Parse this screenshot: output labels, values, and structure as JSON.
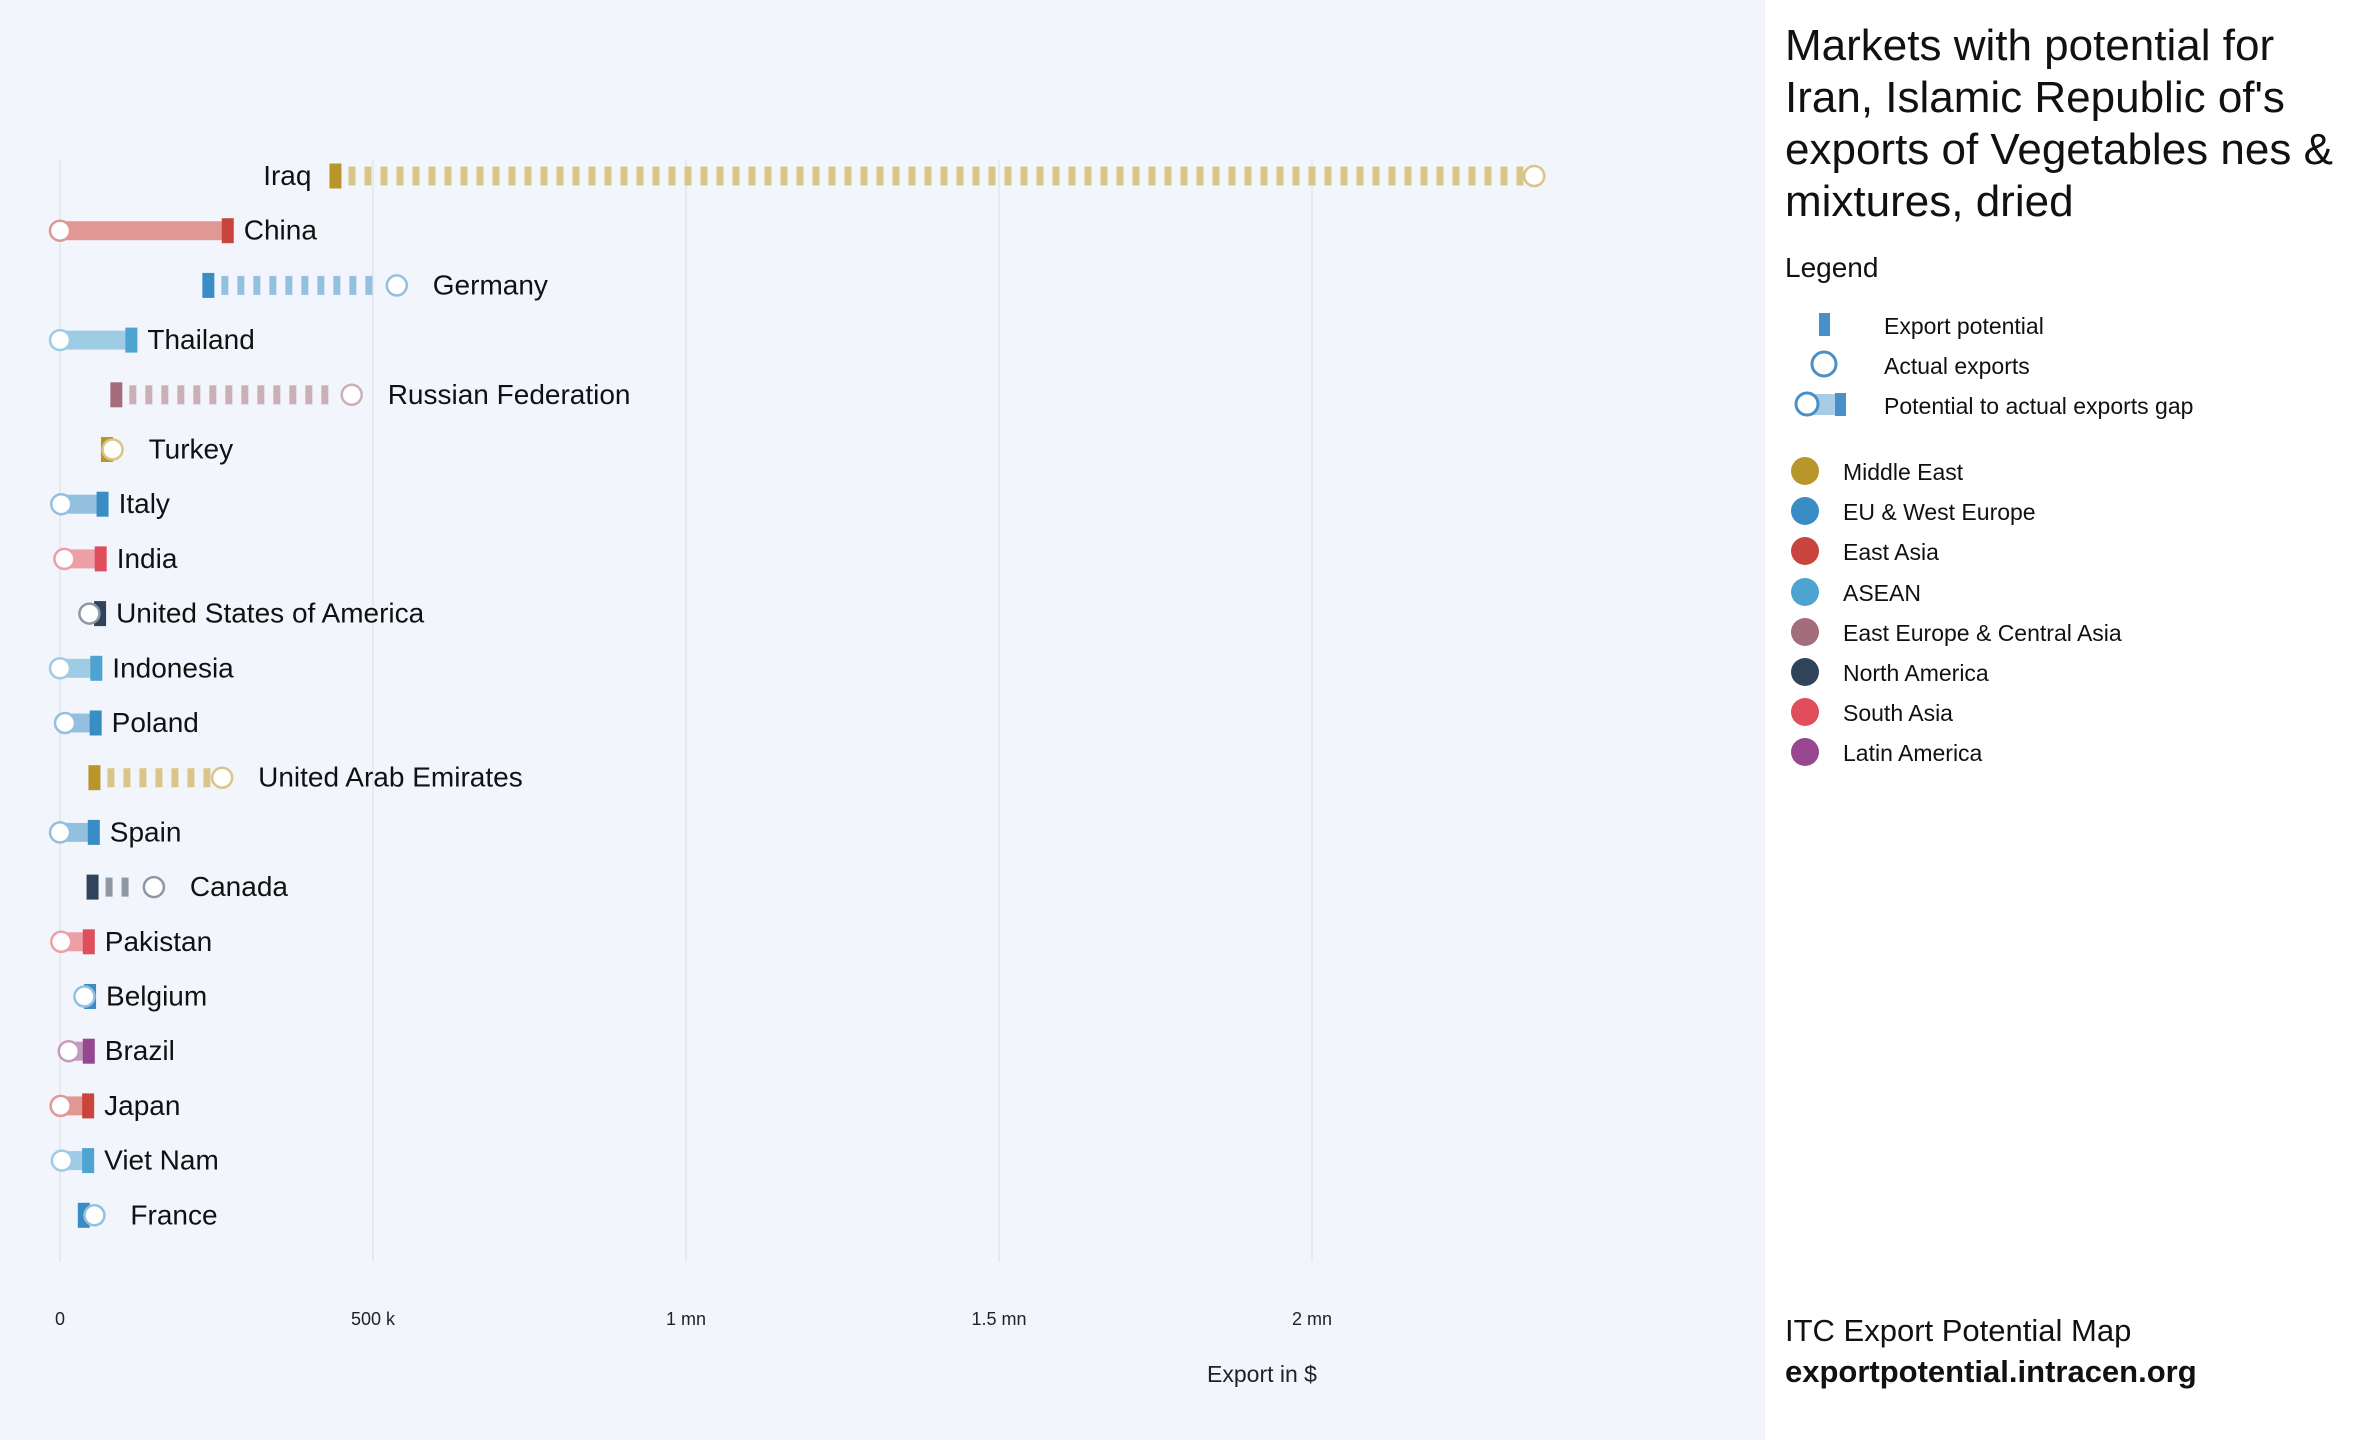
{
  "chart_data": {
    "type": "dumbbell",
    "title": "Markets with potential for Iran, Islamic Republic of's exports of Vegetables nes & mixtures, dried",
    "xlabel": "Export in $",
    "xlim": [
      0,
      2600000
    ],
    "x_ticks": [
      {
        "value": 0,
        "label": "0"
      },
      {
        "value": 500000,
        "label": "500 k"
      },
      {
        "value": 1000000,
        "label": "1 mn"
      },
      {
        "value": 1500000,
        "label": "1.5 mn"
      },
      {
        "value": 2000000,
        "label": "2 mn"
      }
    ],
    "grid": true,
    "series": [
      {
        "market": "Iraq",
        "region": "Middle East",
        "potential": 440000,
        "actual": 2355000
      },
      {
        "market": "China",
        "region": "East Asia",
        "potential": 268000,
        "actual": 0
      },
      {
        "market": "Germany",
        "region": "EU & West Europe",
        "potential": 237000,
        "actual": 538000
      },
      {
        "market": "Thailand",
        "region": "ASEAN",
        "potential": 114000,
        "actual": 0
      },
      {
        "market": "Russian Federation",
        "region": "East Europe & Central Asia",
        "potential": 90000,
        "actual": 466000
      },
      {
        "market": "Turkey",
        "region": "Middle East",
        "potential": 75000,
        "actual": 84000
      },
      {
        "market": "Italy",
        "region": "EU & West Europe",
        "potential": 68000,
        "actual": 2000
      },
      {
        "market": "India",
        "region": "South Asia",
        "potential": 65000,
        "actual": 7000
      },
      {
        "market": "United States of America",
        "region": "North America",
        "potential": 64000,
        "actual": 47000
      },
      {
        "market": "Indonesia",
        "region": "ASEAN",
        "potential": 58000,
        "actual": 0
      },
      {
        "market": "Poland",
        "region": "EU & West Europe",
        "potential": 57000,
        "actual": 8000
      },
      {
        "market": "United Arab Emirates",
        "region": "Middle East",
        "potential": 55000,
        "actual": 259000
      },
      {
        "market": "Spain",
        "region": "EU & West Europe",
        "potential": 54000,
        "actual": 0
      },
      {
        "market": "Canada",
        "region": "North America",
        "potential": 52000,
        "actual": 150000
      },
      {
        "market": "Pakistan",
        "region": "South Asia",
        "potential": 46000,
        "actual": 2000
      },
      {
        "market": "Belgium",
        "region": "EU & West Europe",
        "potential": 48000,
        "actual": 39000
      },
      {
        "market": "Brazil",
        "region": "Latin America",
        "potential": 46000,
        "actual": 14000
      },
      {
        "market": "Japan",
        "region": "East Asia",
        "potential": 45000,
        "actual": 1000
      },
      {
        "market": "Viet Nam",
        "region": "ASEAN",
        "potential": 45000,
        "actual": 3000
      },
      {
        "market": "France",
        "region": "EU & West Europe",
        "potential": 38000,
        "actual": 55000
      }
    ]
  },
  "legend": {
    "heading": "Legend",
    "items": [
      {
        "key": "potential",
        "label": "Export potential"
      },
      {
        "key": "actual",
        "label": "Actual exports"
      },
      {
        "key": "gap",
        "label": "Potential to actual exports gap"
      }
    ],
    "symbol_color": "#4a90c8",
    "regions": [
      {
        "name": "Middle East",
        "color": "#b8962a"
      },
      {
        "name": "EU & West Europe",
        "color": "#3a8cc4"
      },
      {
        "name": "East Asia",
        "color": "#c8443c"
      },
      {
        "name": "ASEAN",
        "color": "#4ea3d0"
      },
      {
        "name": "East Europe & Central Asia",
        "color": "#a36d7b"
      },
      {
        "name": "North America",
        "color": "#2f435a"
      },
      {
        "name": "South Asia",
        "color": "#e04e5c"
      },
      {
        "name": "Latin America",
        "color": "#96478f"
      }
    ]
  },
  "footer": {
    "line1": "ITC Export Potential Map",
    "line2": "exportpotential.intracen.org"
  }
}
